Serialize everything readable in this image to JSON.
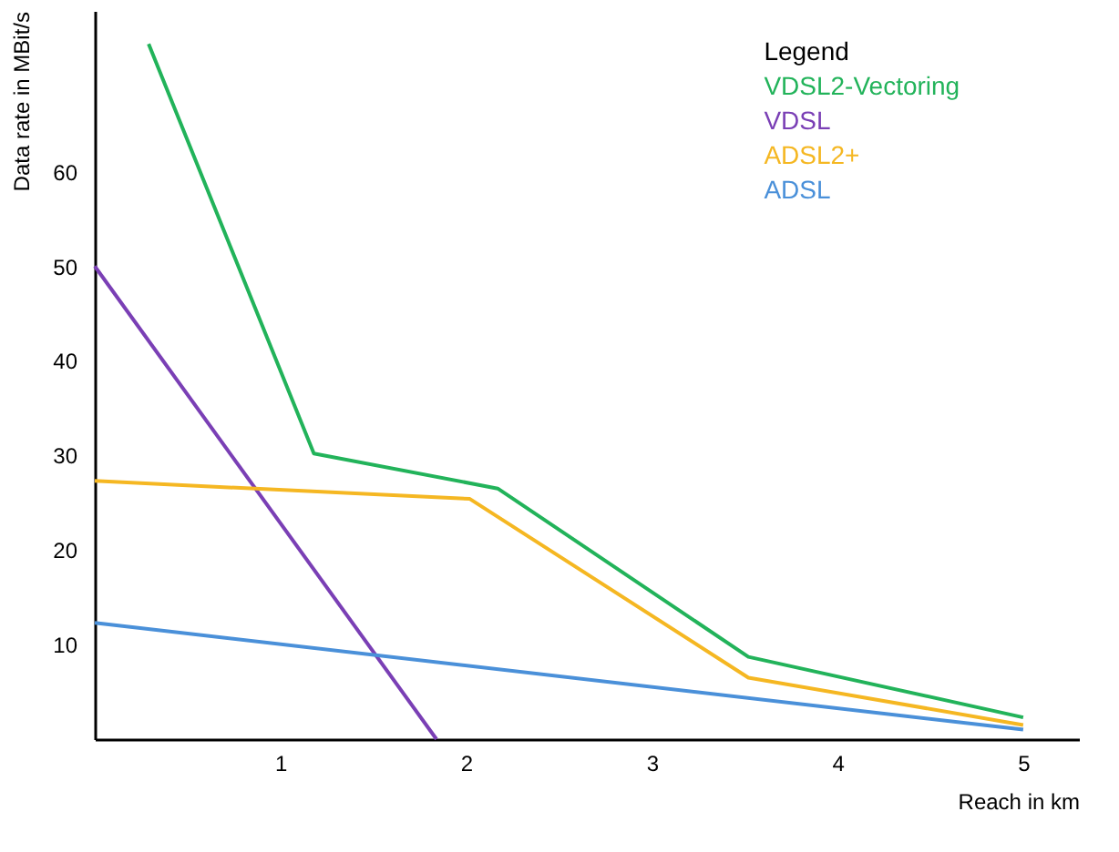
{
  "chart_data": {
    "type": "line",
    "xlabel": "Reach in km",
    "ylabel": "Data rate in MBit/s",
    "legend_title": "Legend",
    "legend": "top right",
    "grid": false,
    "marker": "none",
    "line_style": "solid",
    "xlim": [
      0,
      5.3
    ],
    "ylim": [
      0,
      77
    ],
    "xticks": [
      1,
      2,
      3,
      4,
      5
    ],
    "yticks": [
      10,
      20,
      30,
      40,
      50,
      60
    ],
    "series": [
      {
        "name": "VDSL2-Vectoring",
        "color": "#22b35a",
        "x": [
          0.29,
          1.18,
          2.17,
          3.52,
          5.0
        ],
        "values": [
          73.5,
          30.2,
          26.5,
          8.7,
          2.3
        ]
      },
      {
        "name": "VDSL",
        "color": "#7a3fb5",
        "x": [
          0,
          1.84
        ],
        "values": [
          50,
          0
        ]
      },
      {
        "name": "ADSL2+",
        "color": "#f5b722",
        "x": [
          0,
          2.02,
          3.52,
          5.0
        ],
        "values": [
          27.3,
          25.4,
          6.5,
          1.5
        ]
      },
      {
        "name": "ADSL",
        "color": "#4a90d9",
        "x": [
          0,
          5.0
        ],
        "values": [
          12.3,
          1.0
        ]
      }
    ]
  }
}
